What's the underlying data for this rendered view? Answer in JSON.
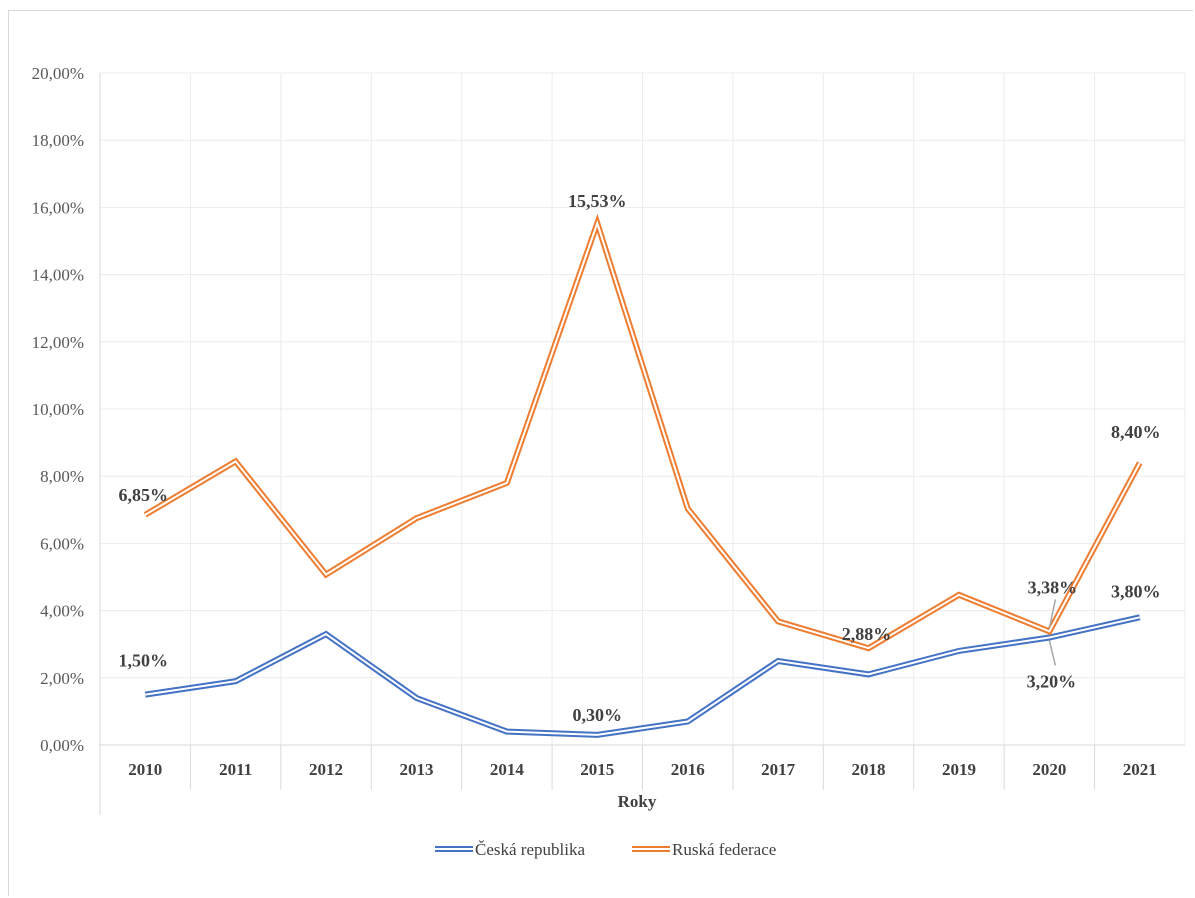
{
  "chart_data": {
    "type": "line",
    "title": "",
    "xlabel": "Roky",
    "ylabel": "",
    "categories": [
      "2010",
      "2011",
      "2012",
      "2013",
      "2014",
      "2015",
      "2016",
      "2017",
      "2018",
      "2019",
      "2020",
      "2021"
    ],
    "ylim": [
      0,
      20
    ],
    "y_ticks": [
      "0,00%",
      "2,00%",
      "4,00%",
      "6,00%",
      "8,00%",
      "10,00%",
      "12,00%",
      "14,00%",
      "16,00%",
      "18,00%",
      "20,00%"
    ],
    "grid": true,
    "legend_position": "bottom",
    "series": [
      {
        "name": "Česká republika",
        "color": "#4472C4",
        "values": [
          1.5,
          1.9,
          3.3,
          1.4,
          0.4,
          0.3,
          0.7,
          2.5,
          2.1,
          2.8,
          3.2,
          3.8
        ],
        "data_labels": {
          "0": "1,50%",
          "5": "0,30%",
          "10": "3,20%",
          "11": "3,80%"
        }
      },
      {
        "name": "Ruská federace",
        "color": "#ED7D31",
        "values": [
          6.85,
          8.44,
          5.07,
          6.75,
          7.8,
          15.53,
          7.04,
          3.68,
          2.88,
          4.47,
          3.38,
          8.4
        ],
        "data_labels": {
          "0": "6,85%",
          "5": "15,53%",
          "8": "2,88%",
          "10": "3,38%",
          "11": "8,40%"
        }
      }
    ]
  }
}
